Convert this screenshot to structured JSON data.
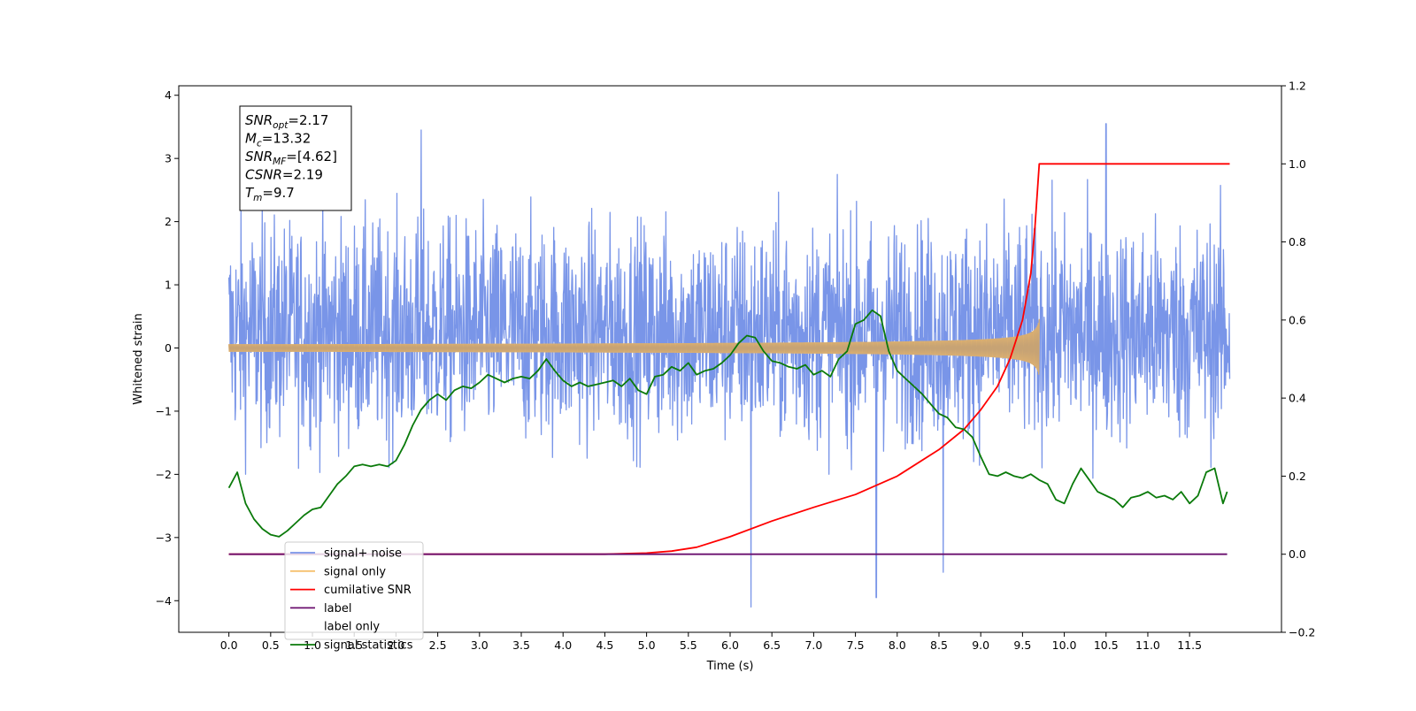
{
  "chart_data": {
    "type": "line",
    "xlabel": "Time (s)",
    "ylabel": "Whitened strain",
    "y2label": "",
    "xlim": [
      -0.6,
      12.6
    ],
    "ylim": [
      -4.5,
      4.15
    ],
    "y2lim": [
      -0.2,
      1.2
    ],
    "x_ticks": [
      0.0,
      0.5,
      1.0,
      1.5,
      2.0,
      2.5,
      3.0,
      3.5,
      4.0,
      4.5,
      5.0,
      5.5,
      6.0,
      6.5,
      7.0,
      7.5,
      8.0,
      8.5,
      9.0,
      9.5,
      10.0,
      10.5,
      11.0,
      11.5
    ],
    "x_tick_labels": [
      "0.0",
      "0.5",
      "1.0",
      "1.5",
      "2.0",
      "2.5",
      "3.0",
      "3.5",
      "4.0",
      "4.5",
      "5.0",
      "5.5",
      "6.0",
      "6.5",
      "7.0",
      "7.5",
      "8.0",
      "8.5",
      "9.0",
      "9.5",
      "10.0",
      "10.5",
      "11.0",
      "11.5"
    ],
    "y_ticks": [
      -4,
      -3,
      -2,
      -1,
      0,
      1,
      2,
      3,
      4
    ],
    "y_tick_labels": [
      "−4",
      "−3",
      "−2",
      "−1",
      "0",
      "1",
      "2",
      "3",
      "4"
    ],
    "y2_ticks": [
      -0.2,
      0.0,
      0.2,
      0.4,
      0.6,
      0.8,
      1.0,
      1.2
    ],
    "y2_tick_labels": [
      "−0.2",
      "0.0",
      "0.2",
      "0.4",
      "0.6",
      "0.8",
      "1.0",
      "1.2"
    ],
    "grid": false,
    "legend_position": "lower-left",
    "annotation": {
      "lines": [
        {
          "base": "SNR",
          "sub": "opt",
          "rest": "=2.17"
        },
        {
          "base": "M",
          "sub": "c",
          "rest": "=13.32"
        },
        {
          "base": "SNR",
          "sub": "MF",
          "rest": "=[4.62]"
        },
        {
          "base": "CSNR",
          "sub": "",
          "rest": "=2.19"
        },
        {
          "base": "T",
          "sub": "m",
          "rest": "=9.7"
        }
      ]
    },
    "series": [
      {
        "name": "signal+ noise",
        "axis": "left",
        "color": "#7995e8",
        "kind": "noise",
        "x_range": [
          0.0,
          11.98
        ],
        "envelope": [
          -2.9,
          3.6
        ],
        "extremes": [
          [
            6.25,
            -4.1
          ],
          [
            7.75,
            -3.95
          ],
          [
            10.5,
            3.55
          ],
          [
            2.3,
            3.45
          ],
          [
            8.55,
            -3.55
          ]
        ]
      },
      {
        "name": "signal only",
        "axis": "left",
        "color": "#f5c06e",
        "kind": "chirp",
        "x_range": [
          0.0,
          9.7
        ],
        "peak_time": 9.7,
        "peak_amplitude": 0.45
      },
      {
        "name": "cumilative SNR",
        "axis": "right",
        "color": "#ff0000",
        "x": [
          0.0,
          4.5,
          5.0,
          5.3,
          5.6,
          6.0,
          6.5,
          7.0,
          7.5,
          8.0,
          8.5,
          8.8,
          9.0,
          9.2,
          9.35,
          9.5,
          9.6,
          9.65,
          9.7,
          11.98
        ],
        "y": [
          0.0,
          0.0,
          0.003,
          0.008,
          0.018,
          0.045,
          0.085,
          0.12,
          0.153,
          0.2,
          0.268,
          0.32,
          0.37,
          0.43,
          0.5,
          0.6,
          0.72,
          0.84,
          1.0,
          1.0
        ]
      },
      {
        "name": "label",
        "axis": "right",
        "color": "#6a0f6e",
        "x": [
          0.0,
          11.95
        ],
        "y": [
          0.0,
          0.0
        ]
      },
      {
        "name": "label only",
        "axis": "right",
        "color": "#b8b8b8",
        "x": [],
        "y": []
      },
      {
        "name": "signal statistics",
        "axis": "right",
        "color": "#0a7a0a",
        "x": [
          0.0,
          0.1,
          0.2,
          0.3,
          0.4,
          0.5,
          0.6,
          0.7,
          0.8,
          0.9,
          1.0,
          1.1,
          1.2,
          1.3,
          1.4,
          1.5,
          1.6,
          1.7,
          1.8,
          1.9,
          2.0,
          2.1,
          2.2,
          2.3,
          2.4,
          2.5,
          2.6,
          2.7,
          2.8,
          2.9,
          3.0,
          3.1,
          3.2,
          3.3,
          3.4,
          3.5,
          3.6,
          3.7,
          3.8,
          3.9,
          4.0,
          4.1,
          4.2,
          4.3,
          4.4,
          4.5,
          4.6,
          4.7,
          4.8,
          4.9,
          5.0,
          5.1,
          5.2,
          5.3,
          5.4,
          5.5,
          5.6,
          5.7,
          5.8,
          5.9,
          6.0,
          6.1,
          6.2,
          6.3,
          6.4,
          6.5,
          6.6,
          6.7,
          6.8,
          6.9,
          7.0,
          7.1,
          7.2,
          7.3,
          7.4,
          7.5,
          7.6,
          7.7,
          7.8,
          7.9,
          8.0,
          8.1,
          8.2,
          8.3,
          8.4,
          8.5,
          8.6,
          8.7,
          8.8,
          8.9,
          9.0,
          9.1,
          9.2,
          9.3,
          9.4,
          9.5,
          9.6,
          9.7,
          9.8,
          9.9,
          10.0,
          10.1,
          10.2,
          10.3,
          10.4,
          10.5,
          10.6,
          10.7,
          10.8,
          10.9,
          11.0,
          11.1,
          11.2,
          11.3,
          11.4,
          11.5,
          11.6,
          11.7,
          11.8,
          11.9,
          11.95
        ],
        "y": [
          0.17,
          0.21,
          0.13,
          0.09,
          0.065,
          0.05,
          0.045,
          0.06,
          0.08,
          0.1,
          0.115,
          0.12,
          0.15,
          0.18,
          0.2,
          0.225,
          0.23,
          0.225,
          0.23,
          0.225,
          0.24,
          0.28,
          0.33,
          0.37,
          0.395,
          0.41,
          0.395,
          0.42,
          0.43,
          0.425,
          0.44,
          0.46,
          0.45,
          0.44,
          0.45,
          0.455,
          0.45,
          0.47,
          0.5,
          0.47,
          0.445,
          0.43,
          0.44,
          0.43,
          0.435,
          0.44,
          0.445,
          0.43,
          0.45,
          0.42,
          0.41,
          0.455,
          0.46,
          0.48,
          0.47,
          0.49,
          0.46,
          0.47,
          0.475,
          0.49,
          0.51,
          0.54,
          0.56,
          0.555,
          0.52,
          0.495,
          0.49,
          0.48,
          0.475,
          0.485,
          0.46,
          0.47,
          0.455,
          0.5,
          0.52,
          0.59,
          0.6,
          0.625,
          0.61,
          0.52,
          0.47,
          0.45,
          0.43,
          0.41,
          0.385,
          0.36,
          0.35,
          0.325,
          0.32,
          0.3,
          0.25,
          0.205,
          0.2,
          0.21,
          0.2,
          0.195,
          0.205,
          0.19,
          0.18,
          0.14,
          0.13,
          0.18,
          0.22,
          0.19,
          0.16,
          0.15,
          0.14,
          0.12,
          0.145,
          0.15,
          0.16,
          0.145,
          0.15,
          0.14,
          0.16,
          0.13,
          0.15,
          0.21,
          0.22,
          0.13,
          0.16
        ]
      }
    ]
  }
}
